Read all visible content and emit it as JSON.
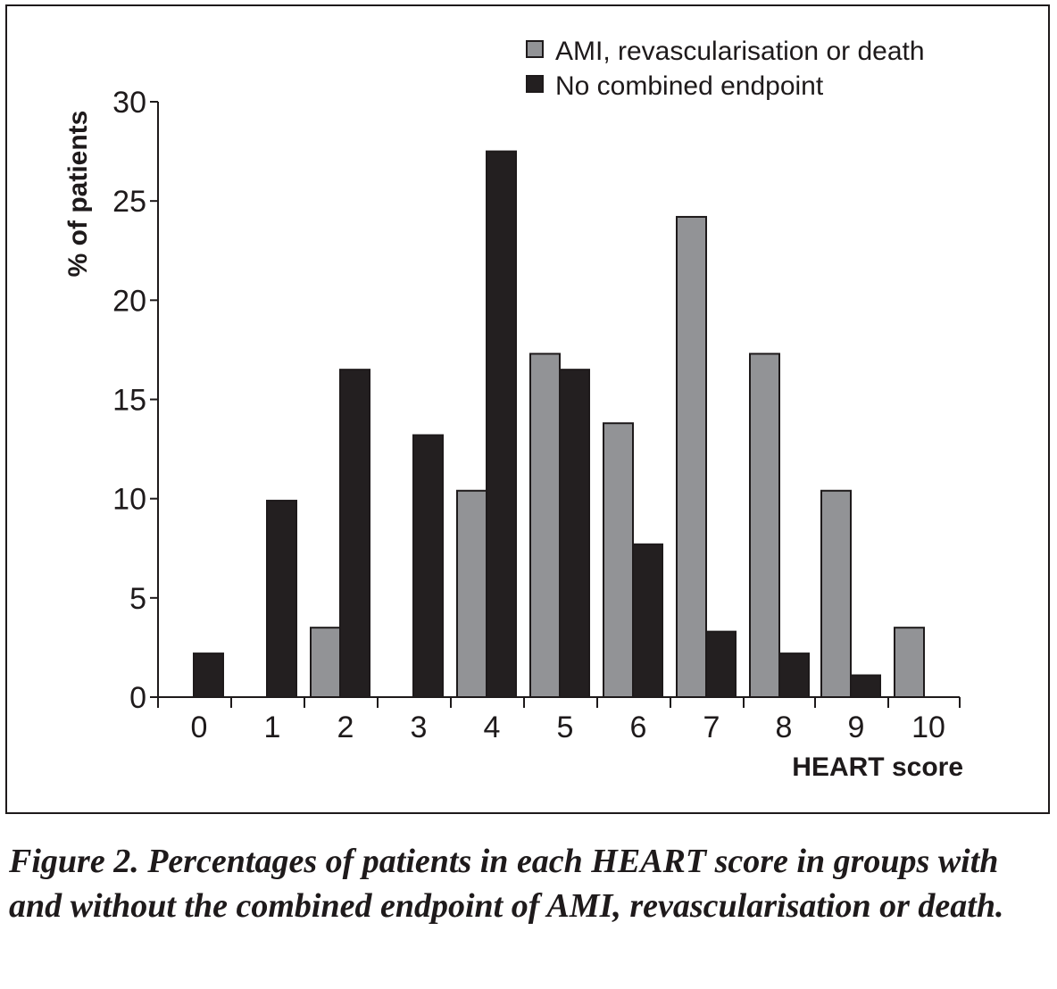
{
  "chart_data": {
    "type": "bar",
    "categories": [
      "0",
      "1",
      "2",
      "3",
      "4",
      "5",
      "6",
      "7",
      "8",
      "9",
      "10"
    ],
    "series": [
      {
        "name": "AMI, revascularisation or death",
        "color": "#929396",
        "values": [
          0,
          0,
          3.5,
          0,
          10.4,
          17.3,
          13.8,
          24.2,
          17.3,
          10.4,
          3.5
        ]
      },
      {
        "name": "No combined endpoint",
        "color": "#231f20",
        "values": [
          2.2,
          9.9,
          16.5,
          13.2,
          27.5,
          16.5,
          7.7,
          3.3,
          2.2,
          1.1,
          0
        ]
      }
    ],
    "xlabel": "HEART score",
    "ylabel": "% of patients",
    "ylim": [
      0,
      30
    ],
    "yticks": [
      "0",
      "5",
      "10",
      "15",
      "20",
      "25",
      "30"
    ],
    "legend_position": "top-right",
    "grid": false
  },
  "caption": "Figure 2. Percentages of patients in each HEART score in groups with and without the combined endpoint of AMI, revascularisation or death."
}
